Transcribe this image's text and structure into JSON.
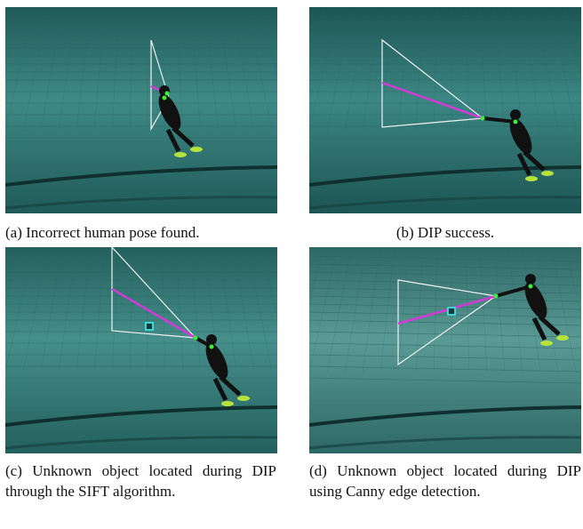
{
  "figure": {
    "panels": [
      {
        "caption": "(a) Incorrect human pose found."
      },
      {
        "caption": "(b) DIP success."
      },
      {
        "caption": "(c) Unknown object located during DIP through the SIFT algorithm."
      },
      {
        "caption": "(d) Unknown object located during DIP using Canny edge detection."
      }
    ]
  }
}
